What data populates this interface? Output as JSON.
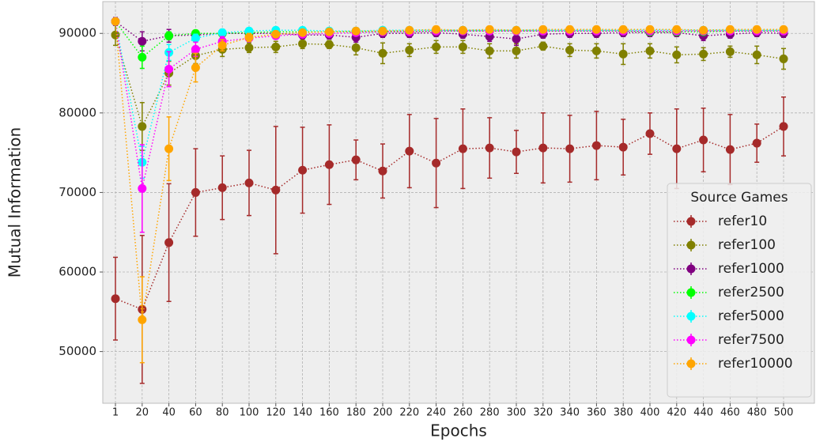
{
  "chart_data": {
    "type": "line",
    "x_label": "Epochs",
    "y_label": "Mutual Information",
    "categories": [
      1,
      20,
      40,
      60,
      80,
      100,
      120,
      140,
      160,
      180,
      200,
      220,
      240,
      260,
      280,
      300,
      320,
      340,
      360,
      380,
      400,
      420,
      440,
      460,
      480,
      500
    ],
    "ylim": [
      43500,
      94000
    ],
    "yticks": [
      50000,
      60000,
      70000,
      80000,
      90000
    ],
    "grid": true,
    "legend_title": "Source Games",
    "legend": "lower right",
    "series": [
      {
        "name": "refer10",
        "color": "#a52a2a",
        "values": [
          56650,
          55300,
          63700,
          70000,
          70600,
          71200,
          70300,
          72800,
          73500,
          74100,
          72700,
          75200,
          73700,
          75500,
          75600,
          75100,
          75600,
          75500,
          75900,
          75700,
          77400,
          75500,
          76600,
          75400,
          76200,
          78300
        ],
        "errors": [
          5200,
          9300,
          7400,
          5500,
          4000,
          4100,
          8000,
          5400,
          5000,
          2500,
          3400,
          4600,
          5600,
          5000,
          3800,
          2700,
          4400,
          4200,
          4300,
          3500,
          2600,
          5000,
          4000,
          4400,
          2400,
          3700
        ]
      },
      {
        "name": "refer100",
        "color": "#808000",
        "values": [
          89800,
          78300,
          85000,
          87200,
          88000,
          88200,
          88300,
          88700,
          88600,
          88200,
          87500,
          87900,
          88300,
          88300,
          87800,
          87800,
          88400,
          87900,
          87800,
          87400,
          87800,
          87300,
          87400,
          87700,
          87300,
          86800
        ],
        "errors": [
          1300,
          3000,
          1500,
          1000,
          900,
          600,
          700,
          600,
          500,
          900,
          1300,
          800,
          800,
          800,
          900,
          900,
          500,
          800,
          900,
          1300,
          900,
          1000,
          800,
          700,
          1100,
          1300
        ]
      },
      {
        "name": "refer1000",
        "color": "#800080",
        "values": [
          91500,
          89000,
          89700,
          89800,
          90000,
          90000,
          90000,
          89800,
          89800,
          89500,
          90000,
          90000,
          90100,
          89900,
          89600,
          89300,
          89900,
          90000,
          90000,
          90100,
          90100,
          90100,
          89700,
          89900,
          90100,
          90000
        ],
        "errors": [
          500,
          1200,
          800,
          500,
          500,
          500,
          500,
          500,
          500,
          600,
          500,
          500,
          500,
          500,
          600,
          800,
          500,
          500,
          500,
          500,
          500,
          500,
          600,
          500,
          500,
          500
        ]
      },
      {
        "name": "refer2500",
        "color": "#00ff00",
        "values": [
          91500,
          87000,
          89700,
          90000,
          90000,
          90100,
          90200,
          90200,
          90200,
          90200,
          90200,
          90200,
          90300,
          90300,
          90300,
          90300,
          90300,
          90300,
          90300,
          90300,
          90200,
          90200,
          90200,
          90300,
          90300,
          90300
        ],
        "errors": [
          300,
          1400,
          500,
          300,
          300,
          300,
          300,
          300,
          300,
          300,
          300,
          300,
          300,
          300,
          300,
          300,
          300,
          300,
          300,
          300,
          300,
          300,
          300,
          300,
          300,
          300
        ]
      },
      {
        "name": "refer5000",
        "color": "#00ffff",
        "values": [
          91500,
          73800,
          87600,
          89400,
          90100,
          90300,
          90400,
          90400,
          90300,
          90300,
          90400,
          90400,
          90400,
          90400,
          90400,
          90400,
          90400,
          90400,
          90400,
          90400,
          90400,
          90400,
          90400,
          90400,
          90400,
          90400
        ],
        "errors": [
          300,
          2000,
          1000,
          500,
          300,
          300,
          300,
          300,
          300,
          300,
          300,
          300,
          300,
          300,
          300,
          300,
          300,
          300,
          300,
          300,
          300,
          300,
          300,
          300,
          300,
          300
        ]
      },
      {
        "name": "refer7500",
        "color": "#ff00ff",
        "values": [
          91500,
          70500,
          85500,
          88000,
          89000,
          89400,
          89700,
          89900,
          90000,
          90100,
          90200,
          90200,
          90300,
          90300,
          90300,
          90300,
          90300,
          90300,
          90300,
          90300,
          90300,
          90300,
          90300,
          90300,
          90300,
          90300
        ],
        "errors": [
          300,
          5500,
          2200,
          900,
          600,
          400,
          300,
          300,
          300,
          300,
          300,
          300,
          300,
          300,
          300,
          300,
          300,
          300,
          300,
          300,
          300,
          300,
          300,
          300,
          300,
          300
        ]
      },
      {
        "name": "refer10000",
        "color": "#ffa500",
        "values": [
          91500,
          54000,
          75500,
          85700,
          88500,
          89500,
          89900,
          90100,
          90200,
          90300,
          90300,
          90400,
          90500,
          90400,
          90500,
          90400,
          90500,
          90500,
          90500,
          90500,
          90500,
          90500,
          90400,
          90500,
          90500,
          90500
        ],
        "errors": [
          300,
          5400,
          4000,
          1800,
          700,
          500,
          400,
          300,
          300,
          300,
          300,
          300,
          300,
          300,
          300,
          300,
          300,
          300,
          300,
          300,
          300,
          300,
          300,
          300,
          300,
          300
        ]
      }
    ]
  }
}
